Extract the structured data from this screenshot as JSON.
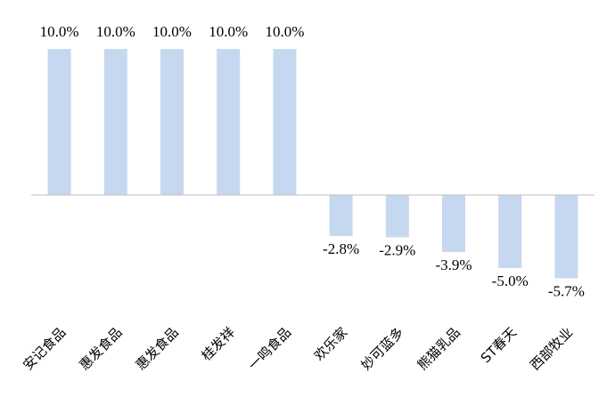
{
  "chart_data": {
    "type": "bar",
    "categories": [
      "安记食品",
      "惠发食品",
      "惠发食品",
      "桂发祥",
      "一鸣食品",
      "欢乐家",
      "妙可蓝多",
      "熊猫乳品",
      "ST春天",
      "西部牧业"
    ],
    "values": [
      10.0,
      10.0,
      10.0,
      10.0,
      10.0,
      -2.8,
      -2.9,
      -3.9,
      -5.0,
      -5.7
    ],
    "value_labels": [
      "10.0%",
      "10.0%",
      "10.0%",
      "10.0%",
      "10.0%",
      "-2.8%",
      "-2.9%",
      "-3.9%",
      "-5.0%",
      "-5.7%"
    ],
    "title": "",
    "xlabel": "",
    "ylabel": "",
    "ylim": [
      -10,
      10
    ],
    "grid": false,
    "legend": "none",
    "bar_color": "#c6d8f0",
    "axis_color": "#bfbfbf"
  }
}
